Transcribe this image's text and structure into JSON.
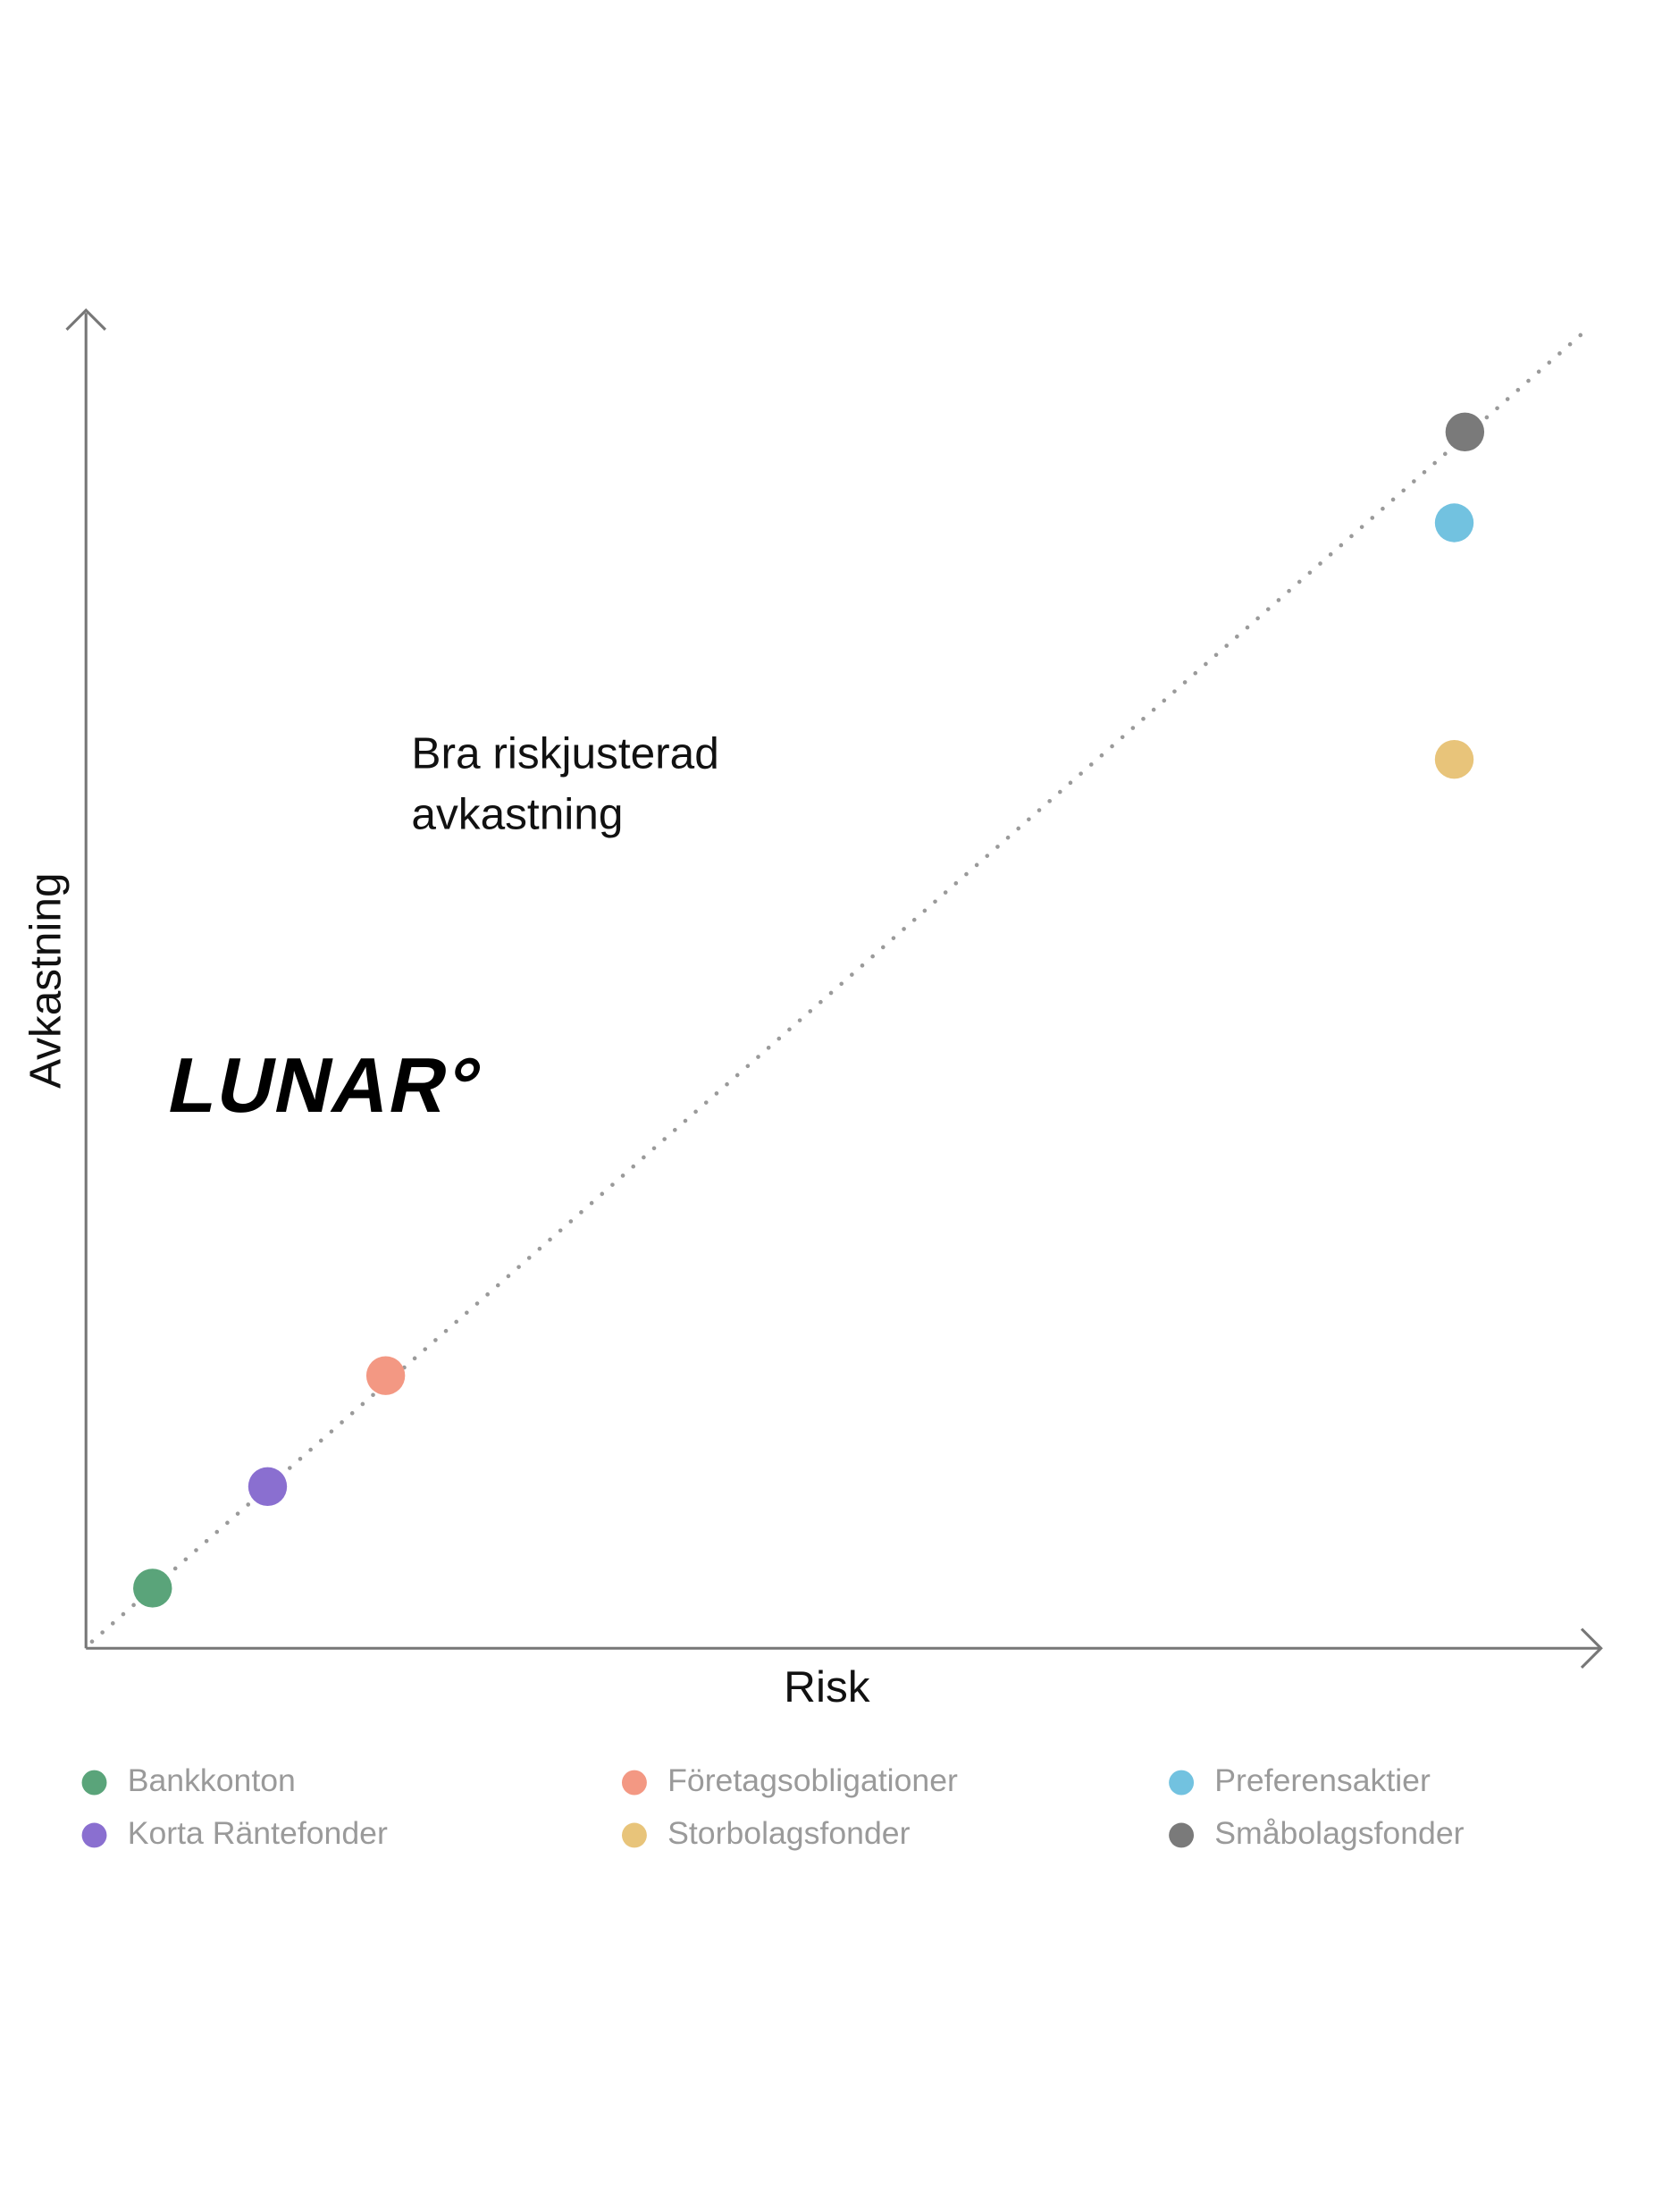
{
  "chart_data": {
    "type": "scatter",
    "annotation": [
      "Bra riskjusterad",
      "avkastning"
    ],
    "logo": "LUNAR°",
    "x_label": "Risk",
    "y_label": "Avkastning",
    "xlim": [
      0,
      100
    ],
    "ylim": [
      0,
      100
    ],
    "trend_line": {
      "x": [
        0.4,
        99.4
      ],
      "y": [
        0.5,
        98.9
      ],
      "color": "#9a9a9a"
    },
    "series": [
      {
        "name": "Bankkonton",
        "color": "#5aa47a",
        "x": [
          4.4
        ],
        "values": [
          4.5
        ]
      },
      {
        "name": "Korta Räntefonder",
        "color": "#8a6fd0",
        "x": [
          12.0
        ],
        "values": [
          12.1
        ]
      },
      {
        "name": "Företagsobligationer",
        "color": "#f39883",
        "x": [
          19.8
        ],
        "values": [
          20.4
        ]
      },
      {
        "name": "Storbolagsfonder",
        "color": "#e8c47a",
        "x": [
          90.4
        ],
        "values": [
          66.5
        ]
      },
      {
        "name": "Preferensaktier",
        "color": "#72c2e0",
        "x": [
          90.4
        ],
        "values": [
          84.2
        ]
      },
      {
        "name": "Småbolagsfonder",
        "color": "#7a7a7a",
        "x": [
          91.1
        ],
        "values": [
          91.0
        ]
      }
    ]
  }
}
